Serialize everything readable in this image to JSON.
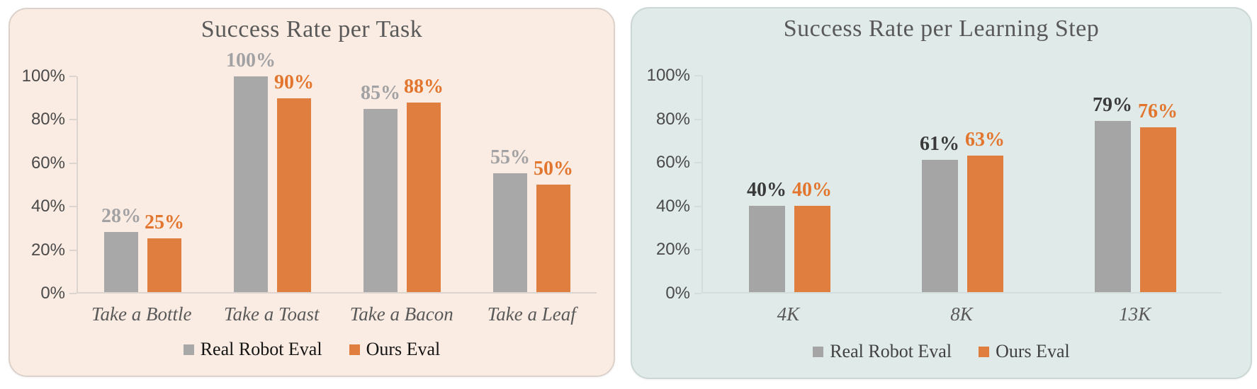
{
  "page_background": "#FFFFFF",
  "chart_data": [
    {
      "id": "success-rate-per-task",
      "type": "bar",
      "title": "Success Rate per Task",
      "categories": [
        "Take a Bottle",
        "Take a Toast",
        "Take a Bacon",
        "Take a Leaf"
      ],
      "series": [
        {
          "name": "Real Robot Eval",
          "values": [
            28,
            100,
            85,
            55
          ],
          "bar_color": "#A8A8A8",
          "label_color": "#A2A2A4"
        },
        {
          "name": "Ours Eval",
          "values": [
            25,
            90,
            88,
            50
          ],
          "bar_color": "#DF7E3E",
          "label_color": "#E2762F"
        }
      ],
      "data_label_format": "{v}%",
      "data_labels": [
        [
          "28%",
          "100%",
          "85%",
          "55%"
        ],
        [
          "25%",
          "90%",
          "88%",
          "50%"
        ]
      ],
      "ylim": [
        0,
        100
      ],
      "y_ticks": [
        0,
        20,
        40,
        60,
        80,
        100
      ],
      "y_tick_labels": [
        "0%",
        "20%",
        "40%",
        "60%",
        "80%",
        "100%"
      ],
      "grid": false,
      "legend_position": "bottom",
      "legend_labels": [
        "Real Robot Eval",
        "Ours Eval"
      ],
      "panel_background": "#FAECE2",
      "panel_border_color": "#DCD2CB",
      "title_color": "#595959",
      "axis_color": "#DCD4CE",
      "tick_label_color": "#4A4A4A",
      "category_label_color": "#595959",
      "legend_text_color": "#141414"
    },
    {
      "id": "success-rate-per-learning-step",
      "type": "bar",
      "title": "Success Rate per Learning Step",
      "categories": [
        "4K",
        "8K",
        "13K"
      ],
      "series": [
        {
          "name": "Real Robot Eval",
          "values": [
            40,
            61,
            79
          ],
          "bar_color": "#A5A5A5",
          "label_color": "#3A3A3A"
        },
        {
          "name": "Ours Eval",
          "values": [
            40,
            63,
            76
          ],
          "bar_color": "#DF7E3E",
          "label_color": "#E2762F"
        }
      ],
      "data_label_format": "{v}%",
      "data_labels": [
        [
          "40%",
          "61%",
          "79%"
        ],
        [
          "40%",
          "63%",
          "76%"
        ]
      ],
      "ylim": [
        0,
        100
      ],
      "y_ticks": [
        0,
        20,
        40,
        60,
        80,
        100
      ],
      "y_tick_labels": [
        "0%",
        "20%",
        "40%",
        "60%",
        "80%",
        "100%"
      ],
      "grid": false,
      "legend_position": "bottom",
      "legend_labels": [
        "Real Robot Eval",
        "Ours Eval"
      ],
      "panel_background": "#E0EAE8",
      "panel_border_color": "#CBD7D4",
      "title_color": "#595959",
      "axis_color": "#D3DDDB",
      "tick_label_color": "#4A4A4A",
      "category_label_color": "#595959",
      "legend_text_color": "#414141"
    }
  ]
}
